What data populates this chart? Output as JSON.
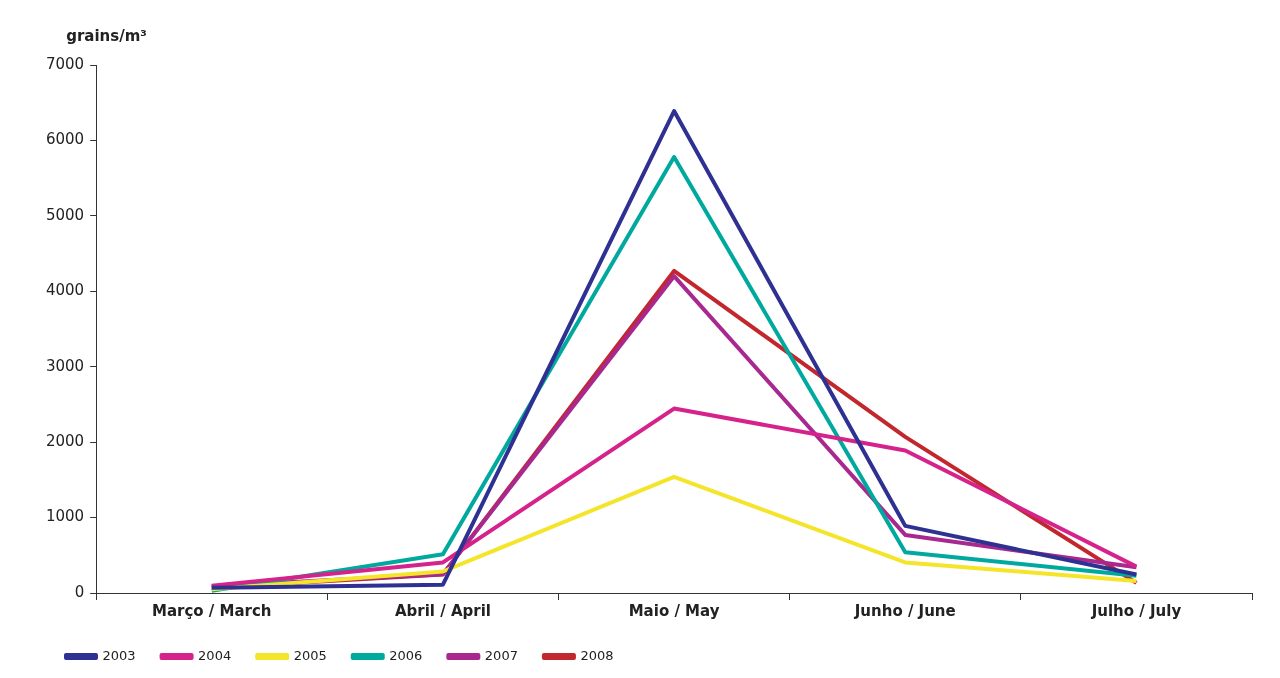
{
  "chart_data": {
    "type": "line",
    "ylabel": "grains/m³",
    "categories": [
      "Março / March",
      "Abril / April",
      "Maio / May",
      "Junho / June",
      "Julho / July"
    ],
    "ylim": [
      0,
      7000
    ],
    "yticks": [
      0,
      1000,
      2000,
      3000,
      4000,
      5000,
      6000,
      7000
    ],
    "grid": false,
    "legend": "bottom left",
    "marker": "none",
    "line_style": "solid",
    "series": [
      {
        "name": "2003",
        "color": "#2e3192",
        "values": [
          70,
          110,
          6390,
          890,
          245
        ]
      },
      {
        "name": "2004",
        "color": "#d6228b",
        "values": [
          95,
          405,
          2445,
          1890,
          350
        ]
      },
      {
        "name": "2005",
        "color": "#f5e52a",
        "values": [
          50,
          285,
          1540,
          405,
          160
        ]
      },
      {
        "name": "2006",
        "color": "#00a99d",
        "values": [
          30,
          515,
          5780,
          540,
          230
        ]
      },
      {
        "name": "2007",
        "color": "#a8288f",
        "values": [
          90,
          250,
          4200,
          770,
          340
        ]
      },
      {
        "name": "2008",
        "color": "#c1272d",
        "values": [
          70,
          245,
          4270,
          2070,
          135
        ]
      }
    ]
  }
}
